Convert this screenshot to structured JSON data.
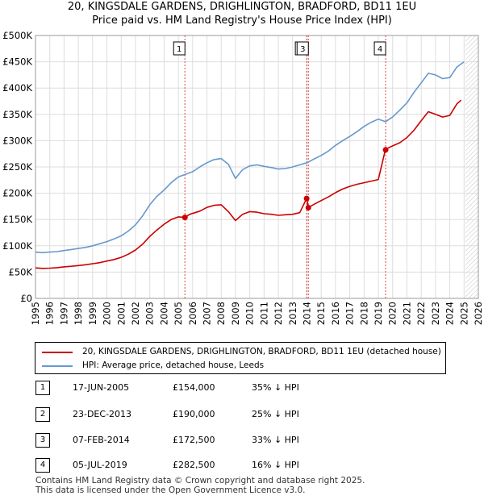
{
  "header": {
    "title_line1": "20, KINGSDALE GARDENS, DRIGHLINGTON, BRADFORD, BD11 1EU",
    "title_line2": "Price paid vs. HM Land Registry's House Price Index (HPI)"
  },
  "colors": {
    "price_paid": "#cc0000",
    "hpi": "#6699cc",
    "marker_line": "#dd4444",
    "projection_hatch": "#999999",
    "grid": "#dddddd"
  },
  "chart_data": {
    "type": "line",
    "title": "Price paid vs. HM Land Registry's House Price Index (HPI)",
    "xlim": [
      1995,
      2026
    ],
    "ylim": [
      0,
      500000
    ],
    "x_ticks": [
      1995,
      1996,
      1997,
      1998,
      1999,
      2000,
      2001,
      2002,
      2003,
      2004,
      2005,
      2006,
      2007,
      2008,
      2009,
      2010,
      2011,
      2012,
      2013,
      2014,
      2015,
      2016,
      2017,
      2018,
      2019,
      2020,
      2021,
      2022,
      2023,
      2024,
      2025,
      2026
    ],
    "y_ticks": [
      0,
      50000,
      100000,
      150000,
      200000,
      250000,
      300000,
      350000,
      400000,
      450000,
      500000
    ],
    "y_tick_labels": [
      "£0",
      "£50K",
      "£100K",
      "£150K",
      "£200K",
      "£250K",
      "£300K",
      "£350K",
      "£400K",
      "£450K",
      "£500K"
    ],
    "projection_start": 2025.1,
    "grid": true,
    "series": [
      {
        "name": "20, KINGSDALE GARDENS, DRIGHLINGTON, BRADFORD, BD11 1EU (detached house)",
        "key": "price_paid",
        "x": [
          1995.0,
          1995.5,
          1996.0,
          1996.5,
          1997.0,
          1997.5,
          1998.0,
          1998.5,
          1999.0,
          1999.5,
          2000.0,
          2000.5,
          2001.0,
          2001.5,
          2002.0,
          2002.5,
          2003.0,
          2003.5,
          2004.0,
          2004.5,
          2005.0,
          2005.46,
          2005.8,
          2006.5,
          2007.0,
          2007.5,
          2008.0,
          2008.5,
          2009.0,
          2009.5,
          2010.0,
          2010.5,
          2011.0,
          2011.5,
          2012.0,
          2012.5,
          2013.0,
          2013.5,
          2013.98,
          2014.1,
          2014.5,
          2015.0,
          2015.5,
          2016.0,
          2016.5,
          2017.0,
          2017.5,
          2018.0,
          2018.5,
          2019.0,
          2019.49,
          2019.6,
          2020.0,
          2020.5,
          2021.0,
          2021.5,
          2022.0,
          2022.5,
          2023.0,
          2023.5,
          2024.0,
          2024.5,
          2024.8
        ],
        "y": [
          58000,
          57000,
          57500,
          58500,
          60000,
          61000,
          62500,
          64000,
          66000,
          68000,
          71000,
          74000,
          78000,
          84000,
          92000,
          103000,
          118000,
          130000,
          141000,
          150000,
          155000,
          154000,
          160000,
          166000,
          173000,
          177000,
          178000,
          165000,
          148000,
          160000,
          165000,
          164000,
          161000,
          160000,
          158000,
          159000,
          160000,
          163000,
          190000,
          172500,
          179000,
          186000,
          193000,
          201000,
          208000,
          213000,
          217000,
          220000,
          223000,
          226000,
          282500,
          285000,
          290000,
          296000,
          306000,
          320000,
          338000,
          355000,
          350000,
          345000,
          348000,
          370000,
          377000
        ]
      },
      {
        "name": "HPI: Average price, detached house, Leeds",
        "key": "hpi",
        "x": [
          1995.0,
          1995.5,
          1996.0,
          1996.5,
          1997.0,
          1997.5,
          1998.0,
          1998.5,
          1999.0,
          1999.5,
          2000.0,
          2000.5,
          2001.0,
          2001.5,
          2002.0,
          2002.5,
          2003.0,
          2003.5,
          2004.0,
          2004.5,
          2005.0,
          2005.5,
          2006.0,
          2006.5,
          2007.0,
          2007.5,
          2008.0,
          2008.5,
          2009.0,
          2009.5,
          2010.0,
          2010.5,
          2011.0,
          2011.5,
          2012.0,
          2012.5,
          2013.0,
          2013.5,
          2014.0,
          2014.5,
          2015.0,
          2015.5,
          2016.0,
          2016.5,
          2017.0,
          2017.5,
          2018.0,
          2018.5,
          2019.0,
          2019.5,
          2020.0,
          2020.5,
          2021.0,
          2021.5,
          2022.0,
          2022.5,
          2023.0,
          2023.5,
          2024.0,
          2024.5,
          2025.0
        ],
        "y": [
          88000,
          87000,
          88000,
          89000,
          91000,
          93000,
          95000,
          97000,
          100000,
          104000,
          108000,
          113000,
          119000,
          128000,
          140000,
          157000,
          178000,
          194000,
          206000,
          220000,
          231000,
          236000,
          241000,
          250000,
          258000,
          264000,
          266000,
          255000,
          228000,
          245000,
          252000,
          254000,
          251000,
          249000,
          246000,
          247000,
          250000,
          254000,
          258000,
          265000,
          272000,
          280000,
          291000,
          300000,
          308000,
          317000,
          327000,
          335000,
          341000,
          336000,
          345000,
          358000,
          372000,
          392000,
          410000,
          428000,
          425000,
          418000,
          420000,
          440000,
          450000
        ]
      }
    ],
    "transactions": [
      {
        "num": "1",
        "x": 2005.46,
        "y": 154000
      },
      {
        "num": "2",
        "x": 2013.98,
        "y": 190000
      },
      {
        "num": "3",
        "x": 2014.1,
        "y": 172500
      },
      {
        "num": "4",
        "x": 2019.51,
        "y": 282500
      }
    ]
  },
  "legend": {
    "price_paid_label": "20, KINGSDALE GARDENS, DRIGHLINGTON, BRADFORD, BD11 1EU (detached house)",
    "hpi_label": "HPI: Average price, detached house, Leeds"
  },
  "transactions_table": [
    {
      "num": "1",
      "date": "17-JUN-2005",
      "price": "£154,000",
      "hpi": "35% ↓ HPI"
    },
    {
      "num": "2",
      "date": "23-DEC-2013",
      "price": "£190,000",
      "hpi": "25% ↓ HPI"
    },
    {
      "num": "3",
      "date": "07-FEB-2014",
      "price": "£172,500",
      "hpi": "33% ↓ HPI"
    },
    {
      "num": "4",
      "date": "05-JUL-2019",
      "price": "£282,500",
      "hpi": "16% ↓ HPI"
    }
  ],
  "footer": {
    "line1": "Contains HM Land Registry data © Crown copyright and database right 2025.",
    "line2": "This data is licensed under the Open Government Licence v3.0."
  }
}
